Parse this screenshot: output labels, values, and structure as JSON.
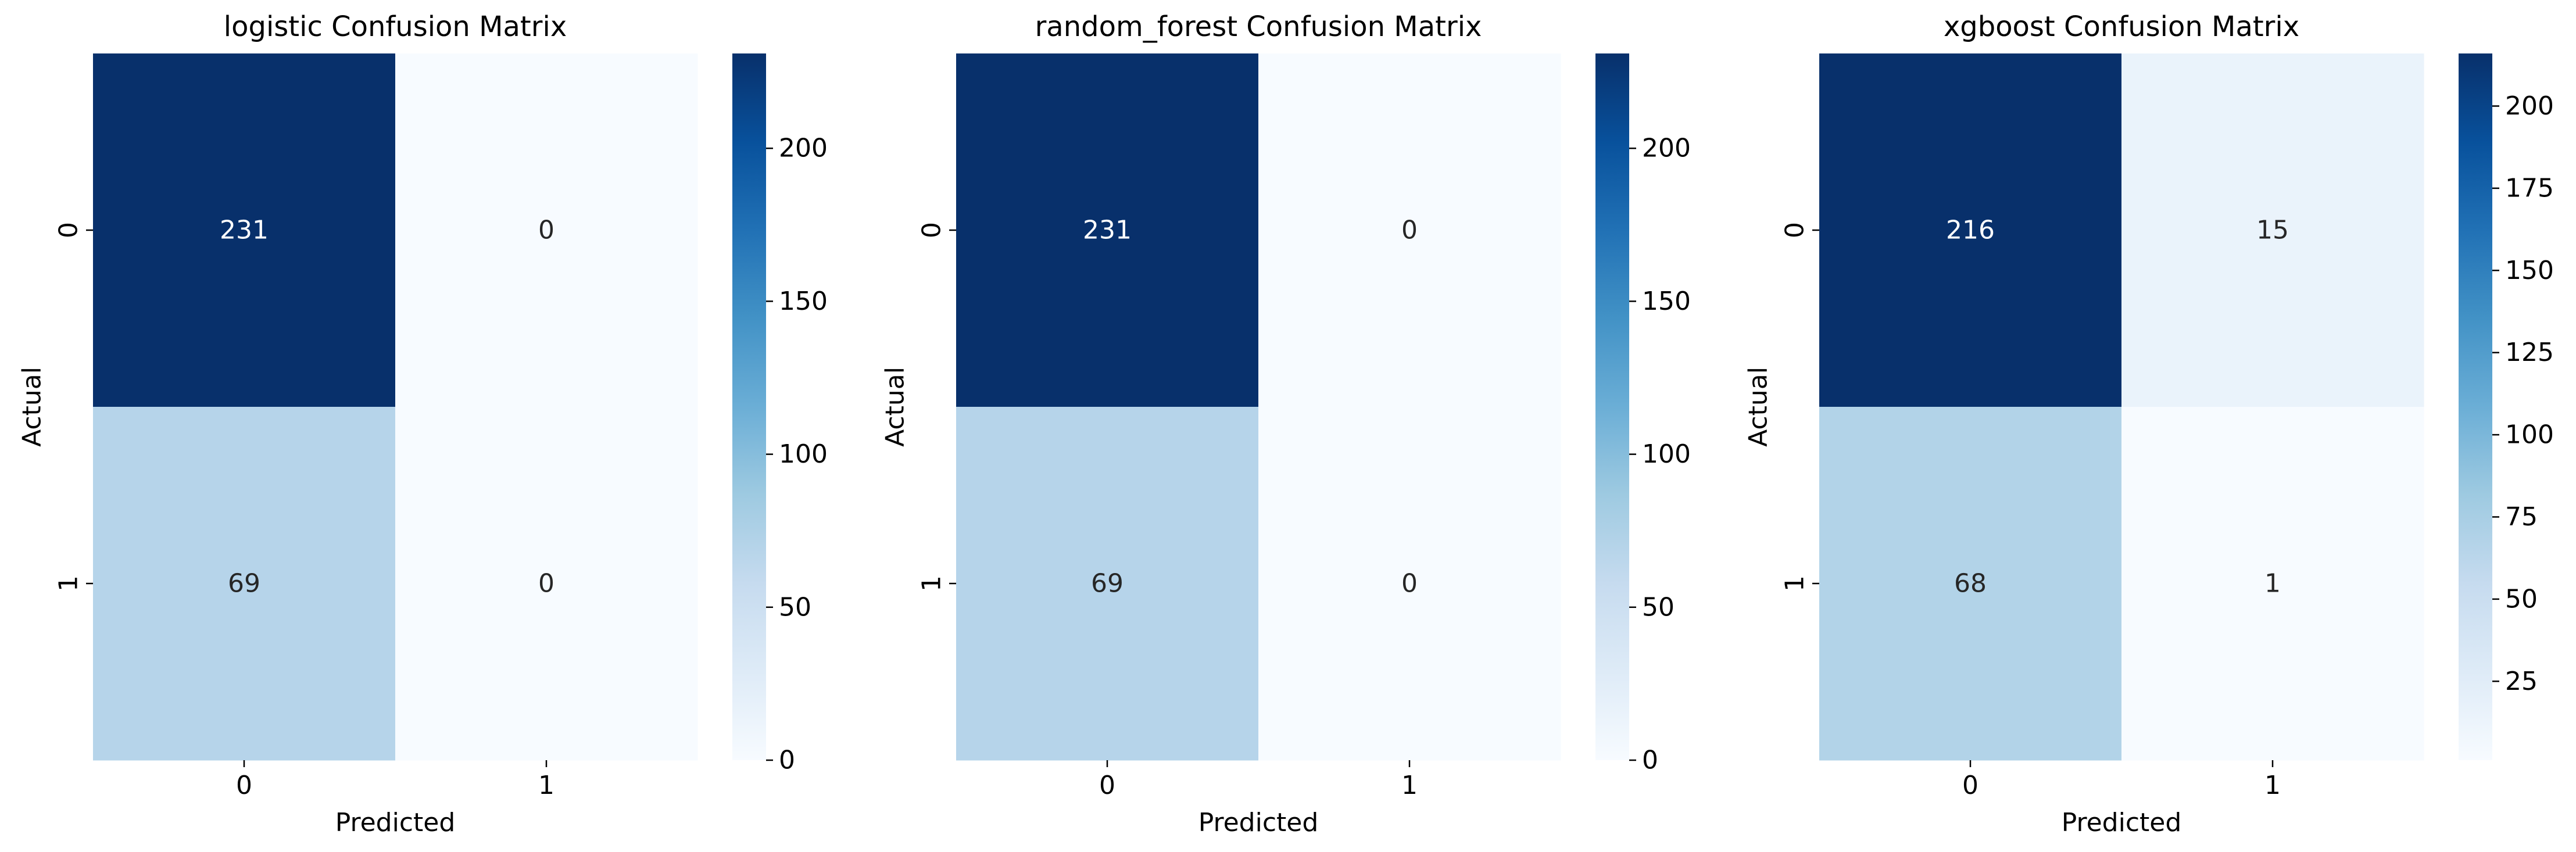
{
  "chart_data": [
    {
      "type": "heatmap",
      "title": "logistic Confusion Matrix",
      "xlabel": "Predicted",
      "ylabel": "Actual",
      "x_categories": [
        "0",
        "1"
      ],
      "y_categories": [
        "0",
        "1"
      ],
      "values": [
        [
          231,
          0
        ],
        [
          69,
          0
        ]
      ],
      "colormap": "Blues",
      "colorbar": {
        "min": 0,
        "max": 231,
        "ticks": [
          0,
          50,
          100,
          150,
          200
        ]
      }
    },
    {
      "type": "heatmap",
      "title": "random_forest Confusion Matrix",
      "xlabel": "Predicted",
      "ylabel": "Actual",
      "x_categories": [
        "0",
        "1"
      ],
      "y_categories": [
        "0",
        "1"
      ],
      "values": [
        [
          231,
          0
        ],
        [
          69,
          0
        ]
      ],
      "colormap": "Blues",
      "colorbar": {
        "min": 0,
        "max": 231,
        "ticks": [
          0,
          50,
          100,
          150,
          200
        ]
      }
    },
    {
      "type": "heatmap",
      "title": "xgboost Confusion Matrix",
      "xlabel": "Predicted",
      "ylabel": "Actual",
      "x_categories": [
        "0",
        "1"
      ],
      "y_categories": [
        "0",
        "1"
      ],
      "values": [
        [
          216,
          15
        ],
        [
          68,
          1
        ]
      ],
      "colormap": "Blues",
      "colorbar": {
        "min": 1,
        "max": 216,
        "ticks": [
          25,
          50,
          75,
          100,
          125,
          150,
          175,
          200
        ]
      }
    }
  ]
}
